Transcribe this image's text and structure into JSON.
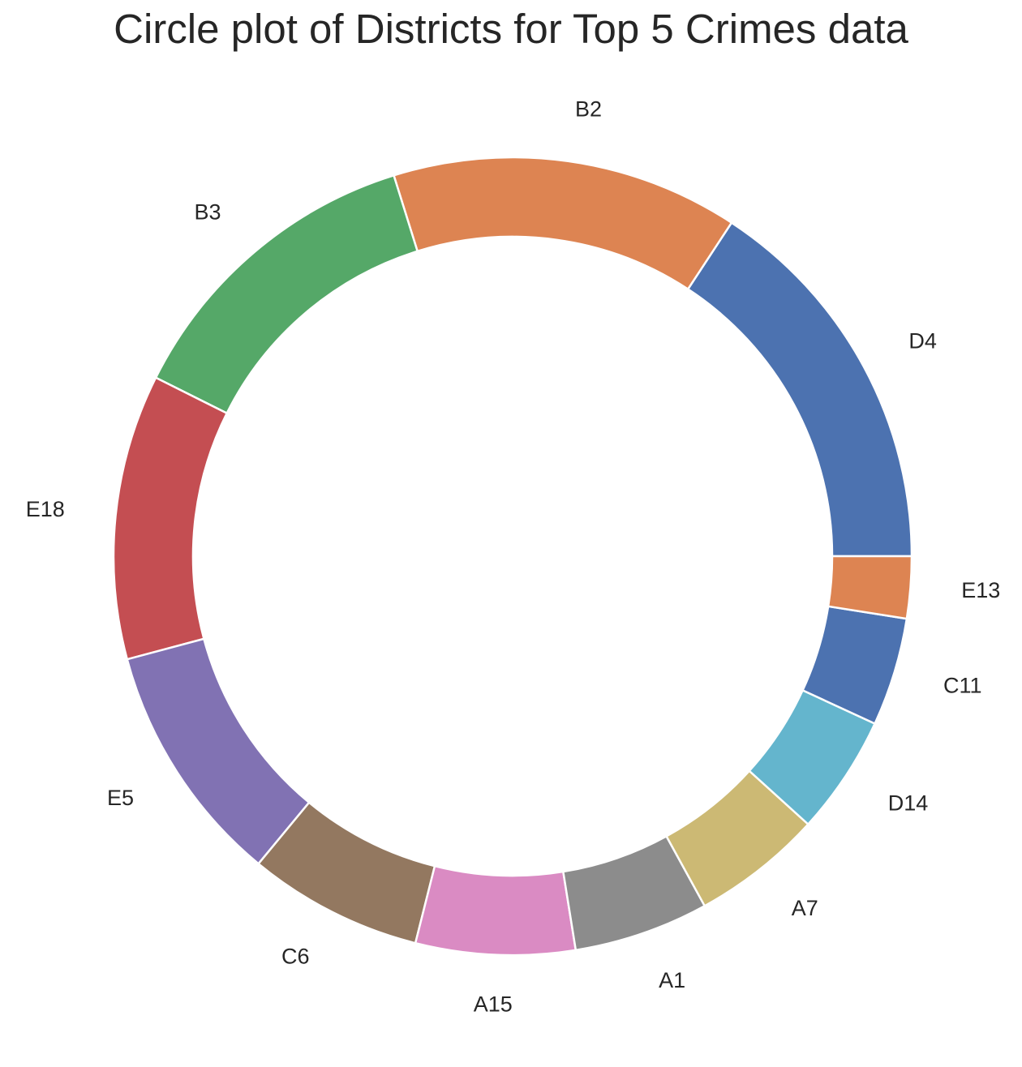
{
  "chart_data": {
    "type": "pie",
    "title": "Circle plot of Districts for Top 5 Crimes data",
    "subtype": "donut",
    "start_angle_deg": 0,
    "direction": "counterclockwise",
    "categories": [
      "D4",
      "B2",
      "B3",
      "E18",
      "E5",
      "C6",
      "A15",
      "A1",
      "A7",
      "D14",
      "C11",
      "E13"
    ],
    "values": [
      17.6,
      15.7,
      14.3,
      12.9,
      11.0,
      7.9,
      7.2,
      6.1,
      5.9,
      5.4,
      4.9,
      2.8
    ],
    "colors": [
      "#4c72b0",
      "#dd8452",
      "#55a868",
      "#c44e52",
      "#8172b3",
      "#937860",
      "#da8bc3",
      "#8c8c8c",
      "#ccb974",
      "#64b5cd",
      "#4c72b0",
      "#dd8452"
    ]
  }
}
